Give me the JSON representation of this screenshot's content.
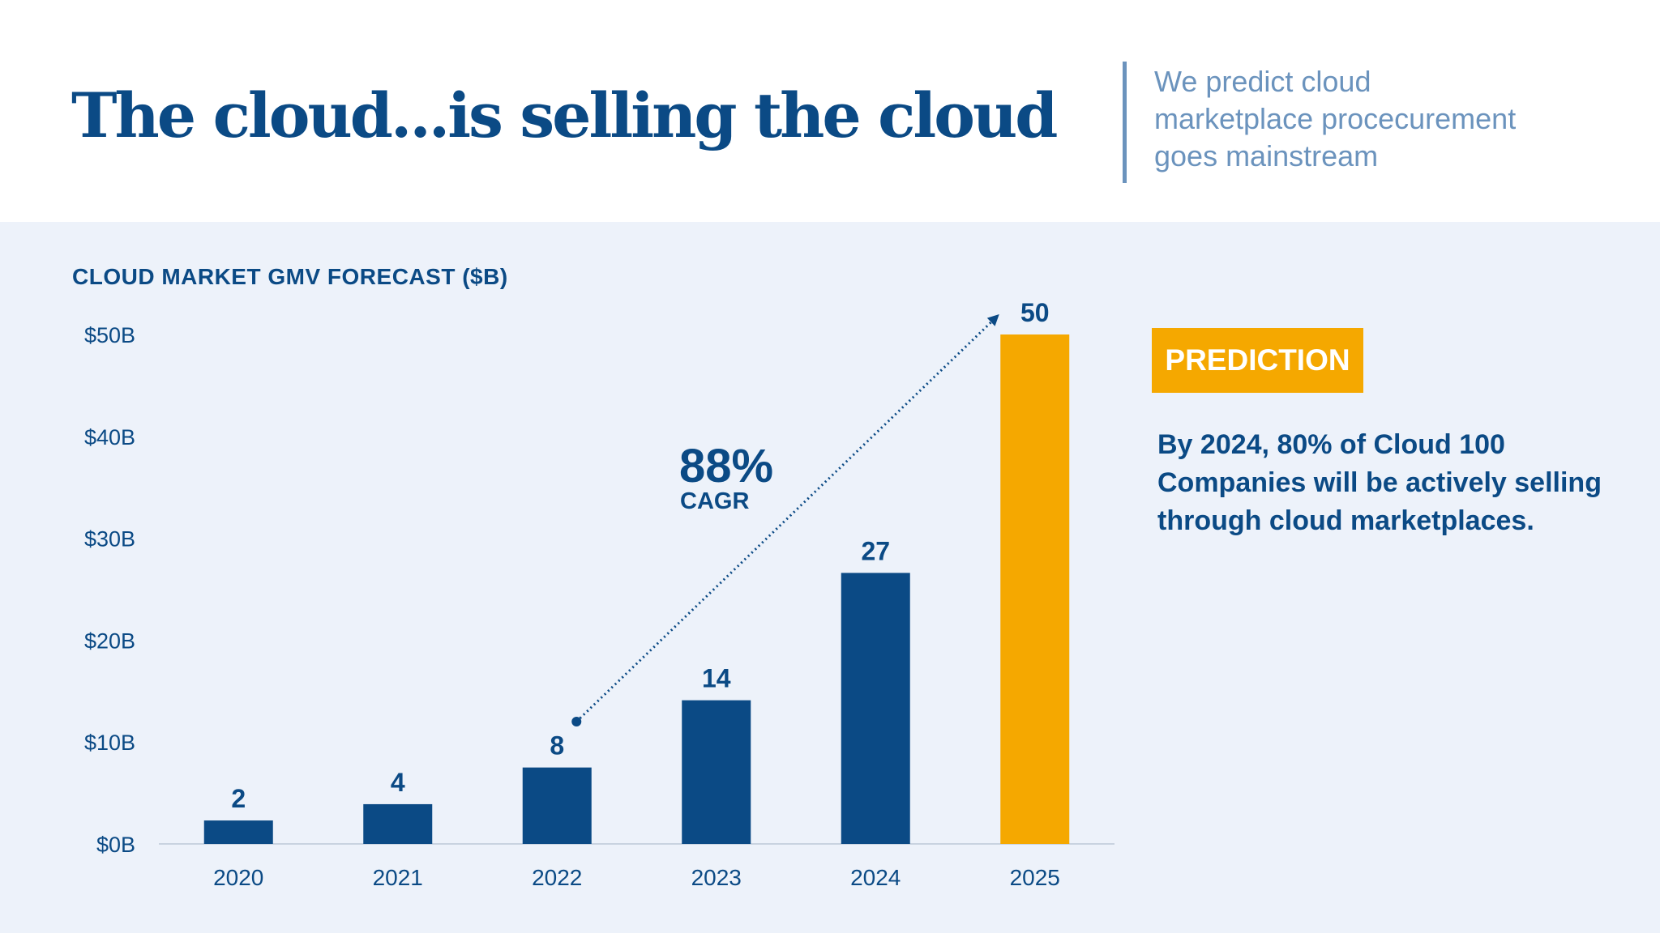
{
  "header": {
    "title": "The cloud...is selling the cloud",
    "subtitle_lines": [
      "We predict cloud",
      "marketplace procecurement",
      "goes mainstream"
    ]
  },
  "prediction": {
    "badge": "PREDICTION",
    "text_lines": [
      "By 2024, 80% of Cloud 100",
      "Companies will be actively selling",
      "through cloud marketplaces."
    ]
  },
  "colors": {
    "primary": "#0b4a85",
    "highlight": "#f5a800",
    "subtitle": "#6b93bd",
    "background": "#edf2fa"
  },
  "chart_data": {
    "type": "bar",
    "title": "CLOUD MARKET GMV FORECAST ($B)",
    "categories": [
      "2020",
      "2021",
      "2022",
      "2023",
      "2024",
      "2025"
    ],
    "values": [
      2.3,
      3.9,
      7.5,
      14.1,
      26.6,
      50
    ],
    "data_labels": [
      "2",
      "4",
      "8",
      "14",
      "27",
      "50"
    ],
    "highlight_category": "2025",
    "ylim": [
      0,
      50
    ],
    "yticks": [
      0,
      10,
      20,
      30,
      40,
      50
    ],
    "ytick_labels": [
      "$0B",
      "$10B",
      "$20B",
      "$30B",
      "$40B",
      "$50B"
    ],
    "grid": false,
    "annotation": {
      "value": "88%",
      "label": "CAGR",
      "from": "2022",
      "to": "2025"
    }
  }
}
